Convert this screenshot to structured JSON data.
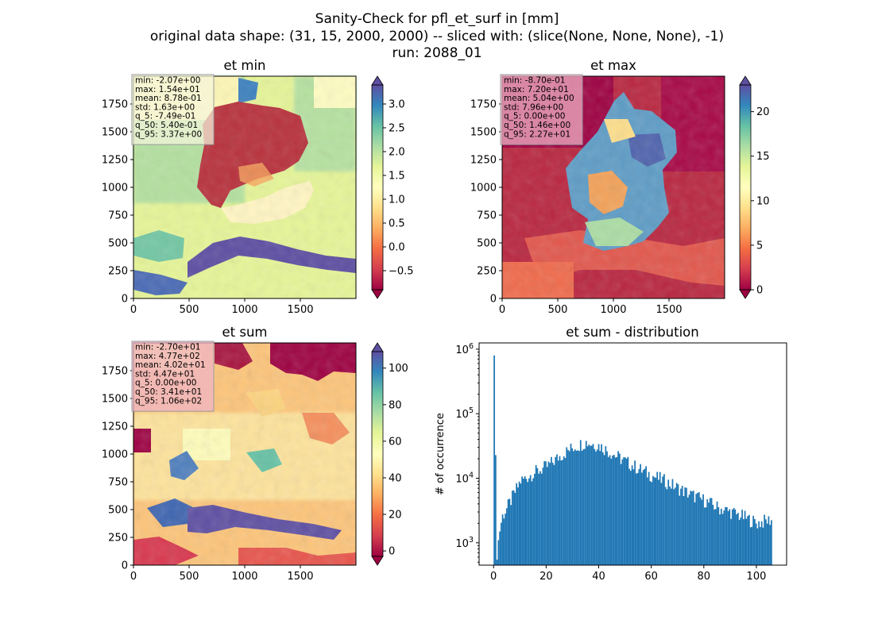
{
  "figure": {
    "suptitle": [
      "Sanity-Check for pfl_et_surf in [mm]",
      "original data shape: (31, 15, 2000, 2000) -- sliced with: (slice(None, None, None), -1)",
      "run: 2088_01"
    ]
  },
  "colormap": {
    "name": "Spectral",
    "stops": [
      "#9e0142",
      "#d53e4f",
      "#f46d43",
      "#fdae61",
      "#fee08b",
      "#ffffbf",
      "#e6f598",
      "#abdda4",
      "#66c2a5",
      "#3288bd",
      "#5e4fa2"
    ]
  },
  "chart_data": [
    {
      "type": "heatmap",
      "title": "et min",
      "xlim": [
        0,
        2000
      ],
      "ylim": [
        0,
        2000
      ],
      "xticks": [
        0,
        500,
        1000,
        1500
      ],
      "yticks": [
        0,
        250,
        500,
        750,
        1000,
        1250,
        1500,
        1750
      ],
      "colorbar": {
        "vmin": -0.9,
        "vmax": 3.4,
        "ticks": [
          -0.5,
          0.0,
          0.5,
          1.0,
          1.5,
          2.0,
          2.5,
          3.0
        ],
        "tick_labels": [
          "−0.5",
          "0.0",
          "0.5",
          "1.0",
          "1.5",
          "2.0",
          "2.5",
          "3.0"
        ],
        "extend": "both"
      },
      "stats_box_color": "#f5f5dc",
      "stats": [
        "min: -2.07e+00",
        "max: 1.54e+01",
        "mean: 8.78e-01",
        "std: 1.63e+00",
        "q_5: -7.49e-01",
        "q_50: 5.40e-01",
        "q_95: 3.37e+00"
      ]
    },
    {
      "type": "heatmap",
      "title": "et max",
      "xlim": [
        0,
        2000
      ],
      "ylim": [
        0,
        2000
      ],
      "xticks": [
        0,
        500,
        1000,
        1500
      ],
      "yticks": [
        0,
        250,
        500,
        750,
        1000,
        1250,
        1500,
        1750
      ],
      "colorbar": {
        "vmin": 0,
        "vmax": 23,
        "ticks": [
          0,
          5,
          10,
          15,
          20
        ],
        "tick_labels": [
          "0",
          "5",
          "10",
          "15",
          "20"
        ],
        "extend": "both"
      },
      "stats_box_color": "#f0b4c8",
      "stats": [
        "min: -8.70e-01",
        "max: 7.20e+01",
        "mean: 5.04e+00",
        "std: 7.96e+00",
        "q_5: 0.00e+00",
        "q_50: 1.46e+00",
        "q_95: 2.27e+01"
      ]
    },
    {
      "type": "heatmap",
      "title": "et sum",
      "xlim": [
        0,
        2000
      ],
      "ylim": [
        0,
        2000
      ],
      "xticks": [
        0,
        500,
        1000,
        1500
      ],
      "yticks": [
        0,
        250,
        500,
        750,
        1000,
        1250,
        1500,
        1750
      ],
      "colorbar": {
        "vmin": -3,
        "vmax": 109,
        "ticks": [
          0,
          20,
          40,
          60,
          80,
          100
        ],
        "tick_labels": [
          "0",
          "20",
          "40",
          "60",
          "80",
          "100"
        ],
        "extend": "both"
      },
      "stats_box_color": "#f0b4c8",
      "stats": [
        "min: -2.70e+01",
        "max: 4.77e+02",
        "mean: 4.02e+01",
        "std: 4.47e+01",
        "q_5: 0.00e+00",
        "q_50: 3.41e+01",
        "q_95: 1.06e+02"
      ]
    },
    {
      "type": "bar",
      "title": "et sum - distribution",
      "xlabel": "",
      "ylabel": "# of occurrence",
      "yscale": "log",
      "xlim": [
        -5.5,
        111.5
      ],
      "ylim": [
        450,
        1250000
      ],
      "xticks": [
        0,
        20,
        40,
        60,
        80,
        100
      ],
      "yticks": [
        1000,
        10000,
        100000,
        1000000
      ],
      "ytick_labels": [
        [
          "10",
          "3"
        ],
        [
          "10",
          "4"
        ],
        [
          "10",
          "5"
        ],
        [
          "10",
          "6"
        ]
      ],
      "bar_color": "#1f77b4",
      "bin_width": 0.53,
      "bin_starts": [
        0,
        1,
        2,
        3,
        5,
        10,
        15,
        20,
        25,
        30,
        35,
        40,
        45,
        50,
        55,
        60,
        65,
        70,
        75,
        80,
        85,
        90,
        95,
        100,
        106
      ],
      "counts_at_starts": [
        800000,
        650,
        1500,
        2500,
        3500,
        9000,
        12000,
        15000,
        22000,
        30000,
        36000,
        32000,
        24000,
        18000,
        14000,
        11000,
        9000,
        7000,
        5500,
        4500,
        3500,
        3000,
        2500,
        2000,
        2300
      ]
    }
  ]
}
